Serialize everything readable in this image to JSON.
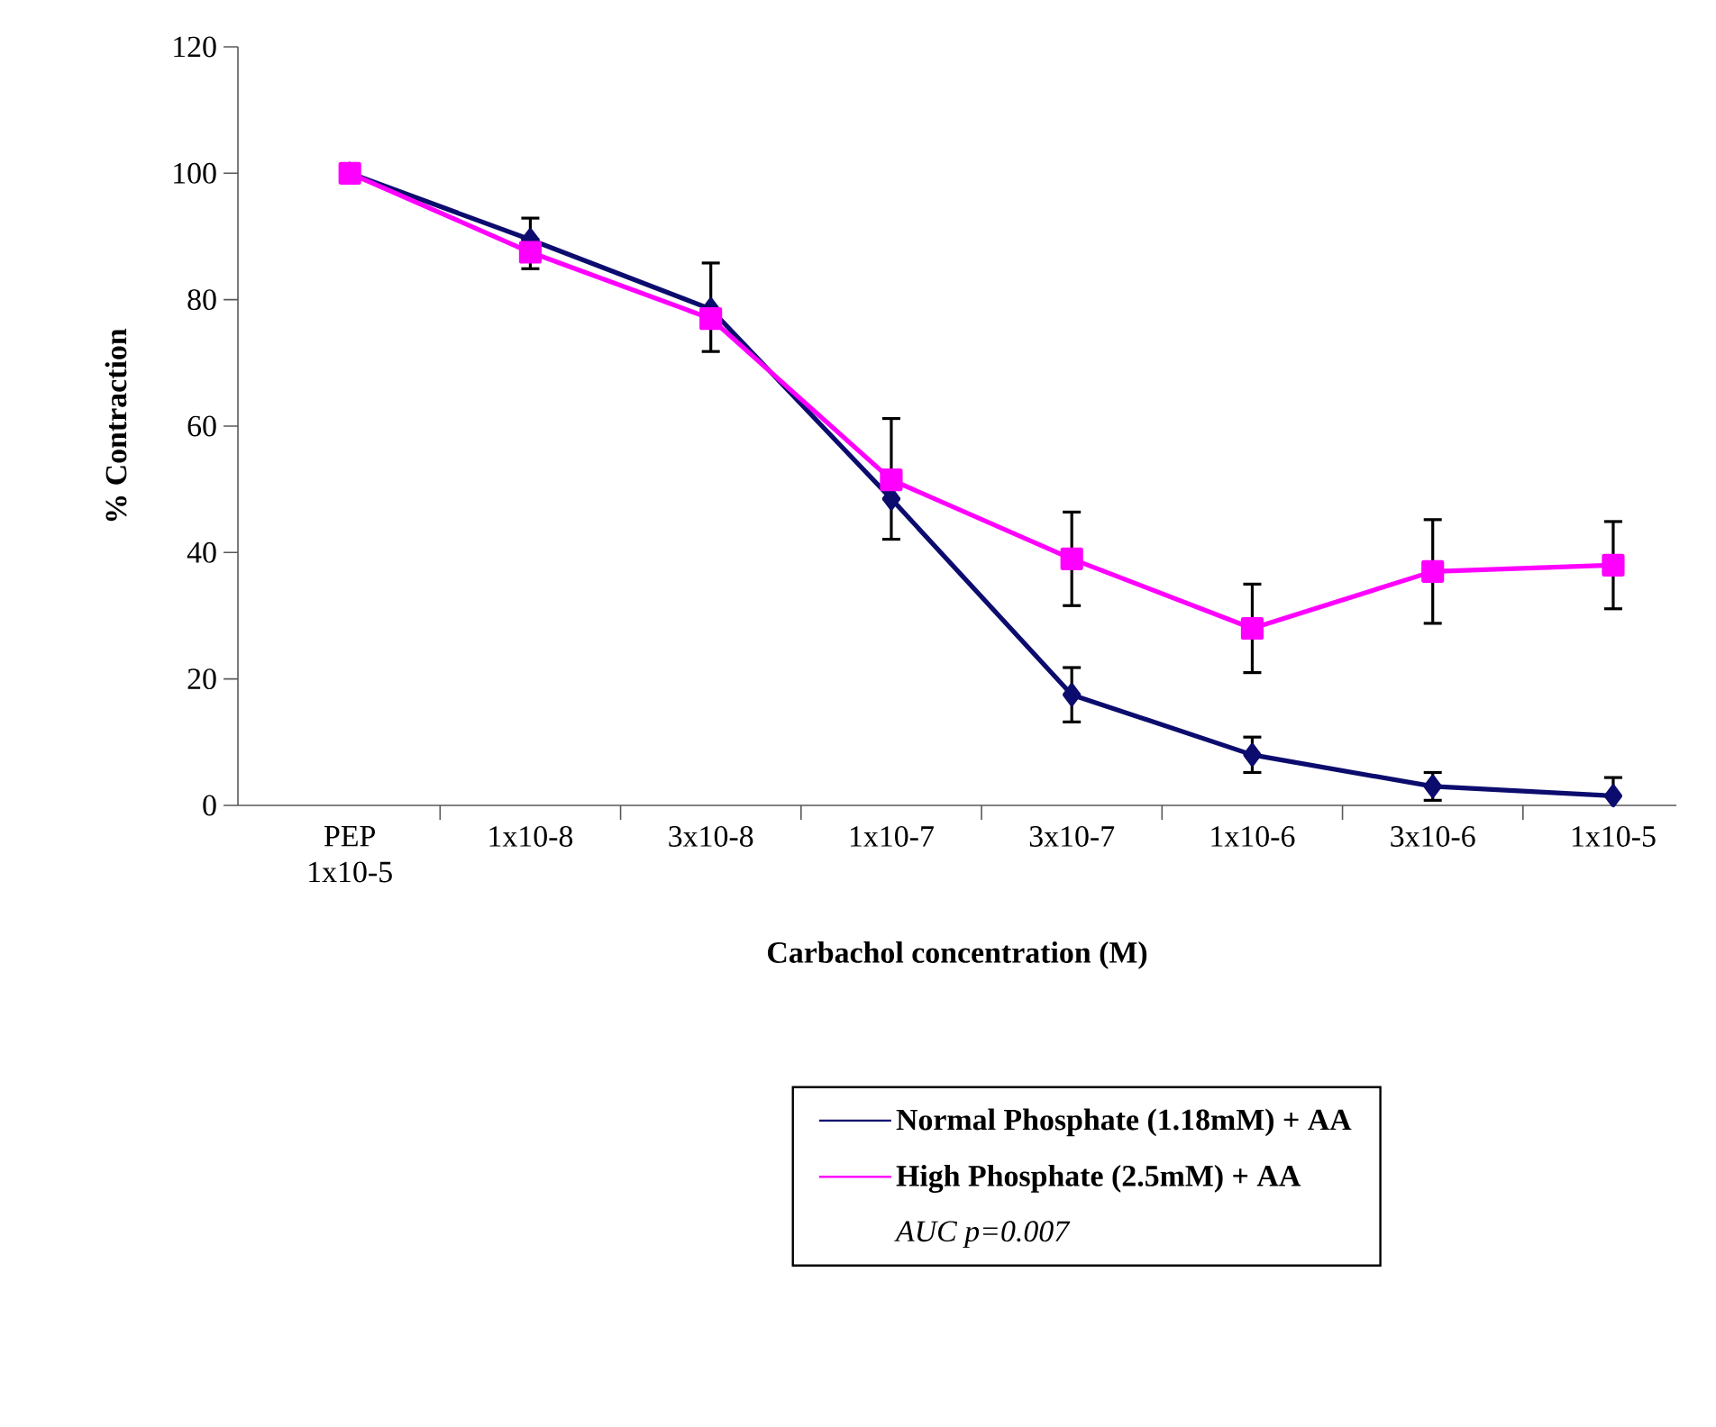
{
  "chart_data": {
    "type": "line",
    "xlabel": "Carbachol concentration (M)",
    "ylabel": "% Contraction",
    "categories": [
      "PEP 1x10-5",
      "1x10-8",
      "3x10-8",
      "1x10-7",
      "3x10-7",
      "1x10-6",
      "3x10-6",
      "1x10-5"
    ],
    "series": [
      {
        "name": "Normal Phosphate (1.18mM)  + AA",
        "color": "#0c0c6e",
        "marker": "diamond",
        "values": [
          100,
          89.5,
          78.5,
          48.5,
          17.5,
          8,
          3,
          1.5
        ],
        "errors": [
          null,
          [
            89.5,
            92.9
          ],
          [
            78.5,
            85.8
          ],
          [
            42.1,
            48.5
          ],
          4.3,
          2.8,
          2.2,
          2.9
        ]
      },
      {
        "name": "High Phosphate (2.5mM)  + AA",
        "color": "#ff00ff",
        "marker": "square",
        "values": [
          100,
          87.5,
          77,
          51.5,
          39,
          28,
          37,
          38
        ],
        "errors": [
          null,
          [
            84.9,
            87.5
          ],
          [
            71.8,
            77
          ],
          [
            51.5,
            61.2
          ],
          7.4,
          7,
          8.2,
          6.9
        ]
      }
    ],
    "ylim": [
      0,
      120
    ],
    "yticks": [
      0,
      20,
      40,
      60,
      80,
      100,
      120
    ],
    "legend": "bottom",
    "grid": false,
    "annotations": [
      "AUC  p=0.007"
    ]
  }
}
